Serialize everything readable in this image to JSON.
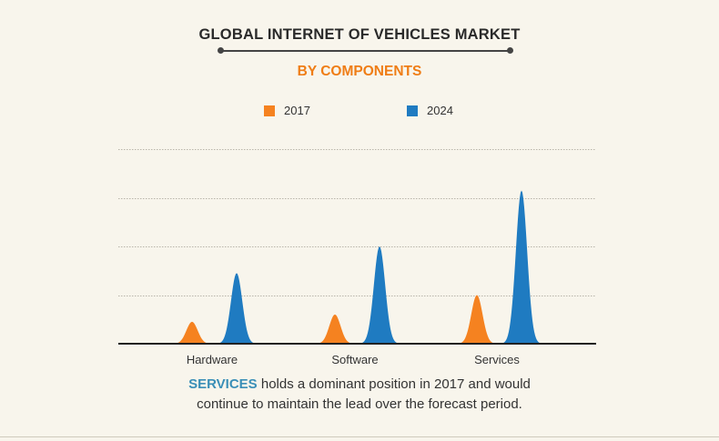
{
  "header": {
    "title": "GLOBAL INTERNET OF VEHICLES MARKET",
    "subtitle": "BY COMPONENTS"
  },
  "colors": {
    "series_2017": "#f58220",
    "series_2024": "#1f7bc1",
    "subtitle": "#ef7d16",
    "highlight": "#3a8fb7",
    "background": "#f8f5ec"
  },
  "legend": [
    {
      "label": "2017",
      "color": "#f58220"
    },
    {
      "label": "2024",
      "color": "#1f7bc1"
    }
  ],
  "chart_data": {
    "type": "area",
    "title": "GLOBAL INTERNET OF VEHICLES MARKET",
    "subtitle": "BY COMPONENTS",
    "categories": [
      "Hardware",
      "Software",
      "Services"
    ],
    "series": [
      {
        "name": "2017",
        "values": [
          0.9,
          1.2,
          2.0
        ]
      },
      {
        "name": "2024",
        "values": [
          2.9,
          4.0,
          6.3
        ]
      }
    ],
    "ylim": [
      0,
      8
    ],
    "grid": true,
    "legend_position": "top-center"
  },
  "caption": {
    "highlight": "SERVICES",
    "line1_rest": " holds a dominant position in 2017 and would",
    "line2": "continue to maintain the lead over the forecast period."
  }
}
